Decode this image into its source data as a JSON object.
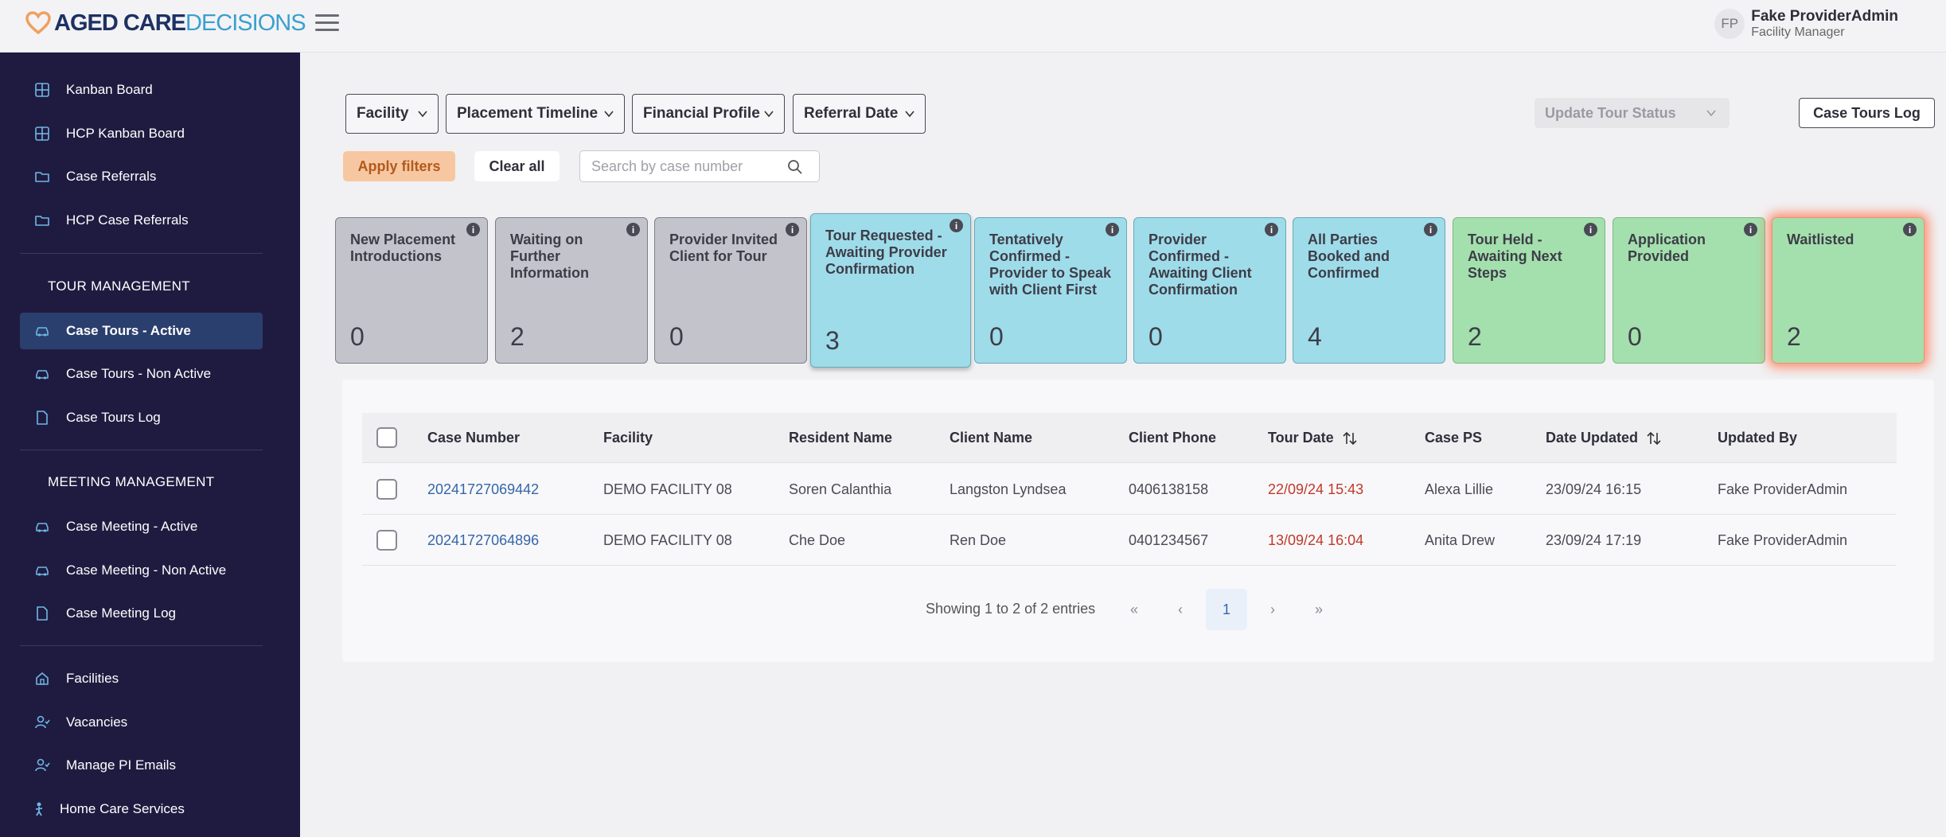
{
  "brand": {
    "part1": "AGED CARE",
    "part2": "DECISIONS"
  },
  "user": {
    "initials": "FP",
    "name": "Fake ProviderAdmin",
    "role": "Facility Manager"
  },
  "sidebar": {
    "items": [
      {
        "label": "Kanban Board",
        "icon": "grid-icon"
      },
      {
        "label": "HCP Kanban Board",
        "icon": "grid-icon"
      },
      {
        "label": "Case Referrals",
        "icon": "folder-icon"
      },
      {
        "label": "HCP Case Referrals",
        "icon": "folder-icon"
      }
    ],
    "tour_section": "TOUR MANAGEMENT",
    "tour_items": [
      {
        "label": "Case Tours - Active",
        "icon": "car-icon"
      },
      {
        "label": "Case Tours - Non Active",
        "icon": "car-icon"
      },
      {
        "label": "Case Tours Log",
        "icon": "document-icon"
      }
    ],
    "meeting_section": "MEETING MANAGEMENT",
    "meeting_items": [
      {
        "label": "Case Meeting - Active",
        "icon": "car-icon"
      },
      {
        "label": "Case Meeting - Non Active",
        "icon": "car-icon"
      },
      {
        "label": "Case Meeting Log",
        "icon": "document-icon"
      }
    ],
    "bottom_items": [
      {
        "label": "Facilities",
        "icon": "home-icon"
      },
      {
        "label": "Vacancies",
        "icon": "user-check-icon"
      },
      {
        "label": "Manage PI Emails",
        "icon": "user-check-icon"
      },
      {
        "label": "Home Care Services",
        "icon": "person-icon"
      }
    ]
  },
  "filters": {
    "facility": "Facility",
    "placement_timeline": "Placement Timeline",
    "financial_profile": "Financial Profile",
    "referral_date": "Referral Date",
    "apply": "Apply filters",
    "clear": "Clear all",
    "search_placeholder": "Search by case number"
  },
  "actions": {
    "update_status": "Update Tour Status",
    "tours_log": "Case Tours Log"
  },
  "cards": [
    {
      "title": "New Placement Introductions",
      "count": "0",
      "color": "#c3c3cb"
    },
    {
      "title": "Waiting on Further Information",
      "count": "2",
      "color": "#c3c3cb"
    },
    {
      "title": "Provider Invited Client for Tour",
      "count": "0",
      "color": "#c3c3cb"
    },
    {
      "title": "Tour Requested - Awaiting Provider Confirmation",
      "count": "3",
      "color": "#9fdcea"
    },
    {
      "title": "Tentatively Confirmed - Provider to Speak with Client First",
      "count": "0",
      "color": "#9fdcea"
    },
    {
      "title": "Provider Confirmed - Awaiting Client Confirmation",
      "count": "0",
      "color": "#9fdcea"
    },
    {
      "title": "All Parties Booked and Confirmed",
      "count": "4",
      "color": "#9fdcea"
    },
    {
      "title": "Tour Held - Awaiting Next Steps",
      "count": "2",
      "color": "#a4e0ad"
    },
    {
      "title": "Application Provided",
      "count": "0",
      "color": "#a4e0ad"
    },
    {
      "title": "Waitlisted",
      "count": "2",
      "color": "#a4e0ad"
    }
  ],
  "card_info_glyph": "i",
  "table": {
    "headers": {
      "case_number": "Case Number",
      "facility": "Facility",
      "resident_name": "Resident Name",
      "client_name": "Client Name",
      "client_phone": "Client Phone",
      "tour_date": "Tour Date",
      "case_ps": "Case PS",
      "date_updated": "Date Updated",
      "updated_by": "Updated By"
    },
    "rows": [
      {
        "case_number": "20241727069442",
        "facility": "DEMO FACILITY 08",
        "resident_name": "Soren Calanthia",
        "client_name": "Langston Lyndsea",
        "client_phone": "0406138158",
        "tour_date": "22/09/24 15:43",
        "case_ps": "Alexa Lillie",
        "date_updated": "23/09/24 16:15",
        "updated_by": "Fake ProviderAdmin"
      },
      {
        "case_number": "20241727064896",
        "facility": "DEMO FACILITY 08",
        "resident_name": "Che Doe",
        "client_name": "Ren Doe",
        "client_phone": "0401234567",
        "tour_date": "13/09/24 16:04",
        "case_ps": "Anita Drew",
        "date_updated": "23/09/24 17:19",
        "updated_by": "Fake ProviderAdmin"
      }
    ]
  },
  "pagination": {
    "summary": "Showing 1 to 2 of 2 entries",
    "first": "«",
    "prev": "‹",
    "current": "1",
    "next": "›",
    "last": "»"
  },
  "colors": {
    "sidebar_bg": "#1f1b40",
    "active_item": "#2b3f6e",
    "link": "#3566a8",
    "overdue_date": "#c0392b",
    "apply_btn": "#f7c7a1"
  }
}
